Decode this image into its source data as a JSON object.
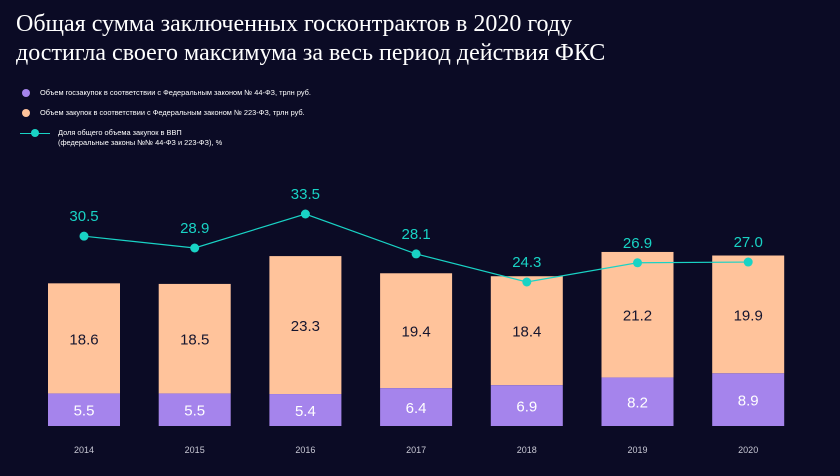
{
  "title": {
    "line1": "Общая сумма заключенных госконтрактов в 2020 году",
    "line2": "достигла своего максимума за весь период действия ФКС"
  },
  "legend": {
    "series1": "Объем госзакупок в соответствии с Федеральным законом № 44-ФЗ, трлн руб.",
    "series2": "Объем закупок в соответствии с Федеральным законом № 223-ФЗ, трлн руб.",
    "line_1": "Доля общего объема закупок в ВВП",
    "line_2": "(федеральные законы №№ 44-ФЗ и 223-ФЗ), %"
  },
  "colors": {
    "series1": "#a584ec",
    "series2": "#ffc39b",
    "line": "#19d3c5",
    "background": "#0b0b25",
    "axis_text": "#c8c8d4"
  },
  "chart_data": {
    "type": "bar",
    "stacked": true,
    "categories": [
      "2014",
      "2015",
      "2016",
      "2017",
      "2018",
      "2019",
      "2020"
    ],
    "series": [
      {
        "name": "Объем госзакупок в соответствии с Федеральным законом № 44-ФЗ, трлн руб.",
        "values": [
          5.5,
          5.5,
          5.4,
          6.4,
          6.9,
          8.2,
          8.9
        ]
      },
      {
        "name": "Объем закупок в соответствии с Федеральным законом № 223-ФЗ, трлн руб.",
        "values": [
          18.6,
          18.5,
          23.3,
          19.4,
          18.4,
          21.2,
          19.9
        ]
      }
    ],
    "line_series": {
      "name": "Доля общего объема закупок в ВВП (федеральные законы №№ 44-ФЗ и 223-ФЗ), %",
      "values": [
        30.5,
        28.9,
        33.5,
        28.1,
        24.3,
        26.9,
        27.0
      ],
      "labels": [
        "30.5",
        "28.9",
        "33.5",
        "28.1",
        "24.3",
        "26.9",
        "27.0"
      ],
      "range": [
        24.3,
        33.5
      ]
    },
    "value_labels": {
      "series1": [
        "5.5",
        "5.5",
        "5.4",
        "6.4",
        "6.9",
        "8.2",
        "8.9"
      ],
      "series2": [
        "18.6",
        "18.5",
        "23.3",
        "19.4",
        "18.4",
        "21.2",
        "19.9"
      ]
    },
    "title": "Общая сумма заключенных госконтрактов в 2020 году достигла своего максимума за весь период действия ФКС",
    "xlabel": "",
    "ylabel": "",
    "ylim": [
      0,
      32
    ],
    "grid": false,
    "legend_position": "top-left"
  }
}
